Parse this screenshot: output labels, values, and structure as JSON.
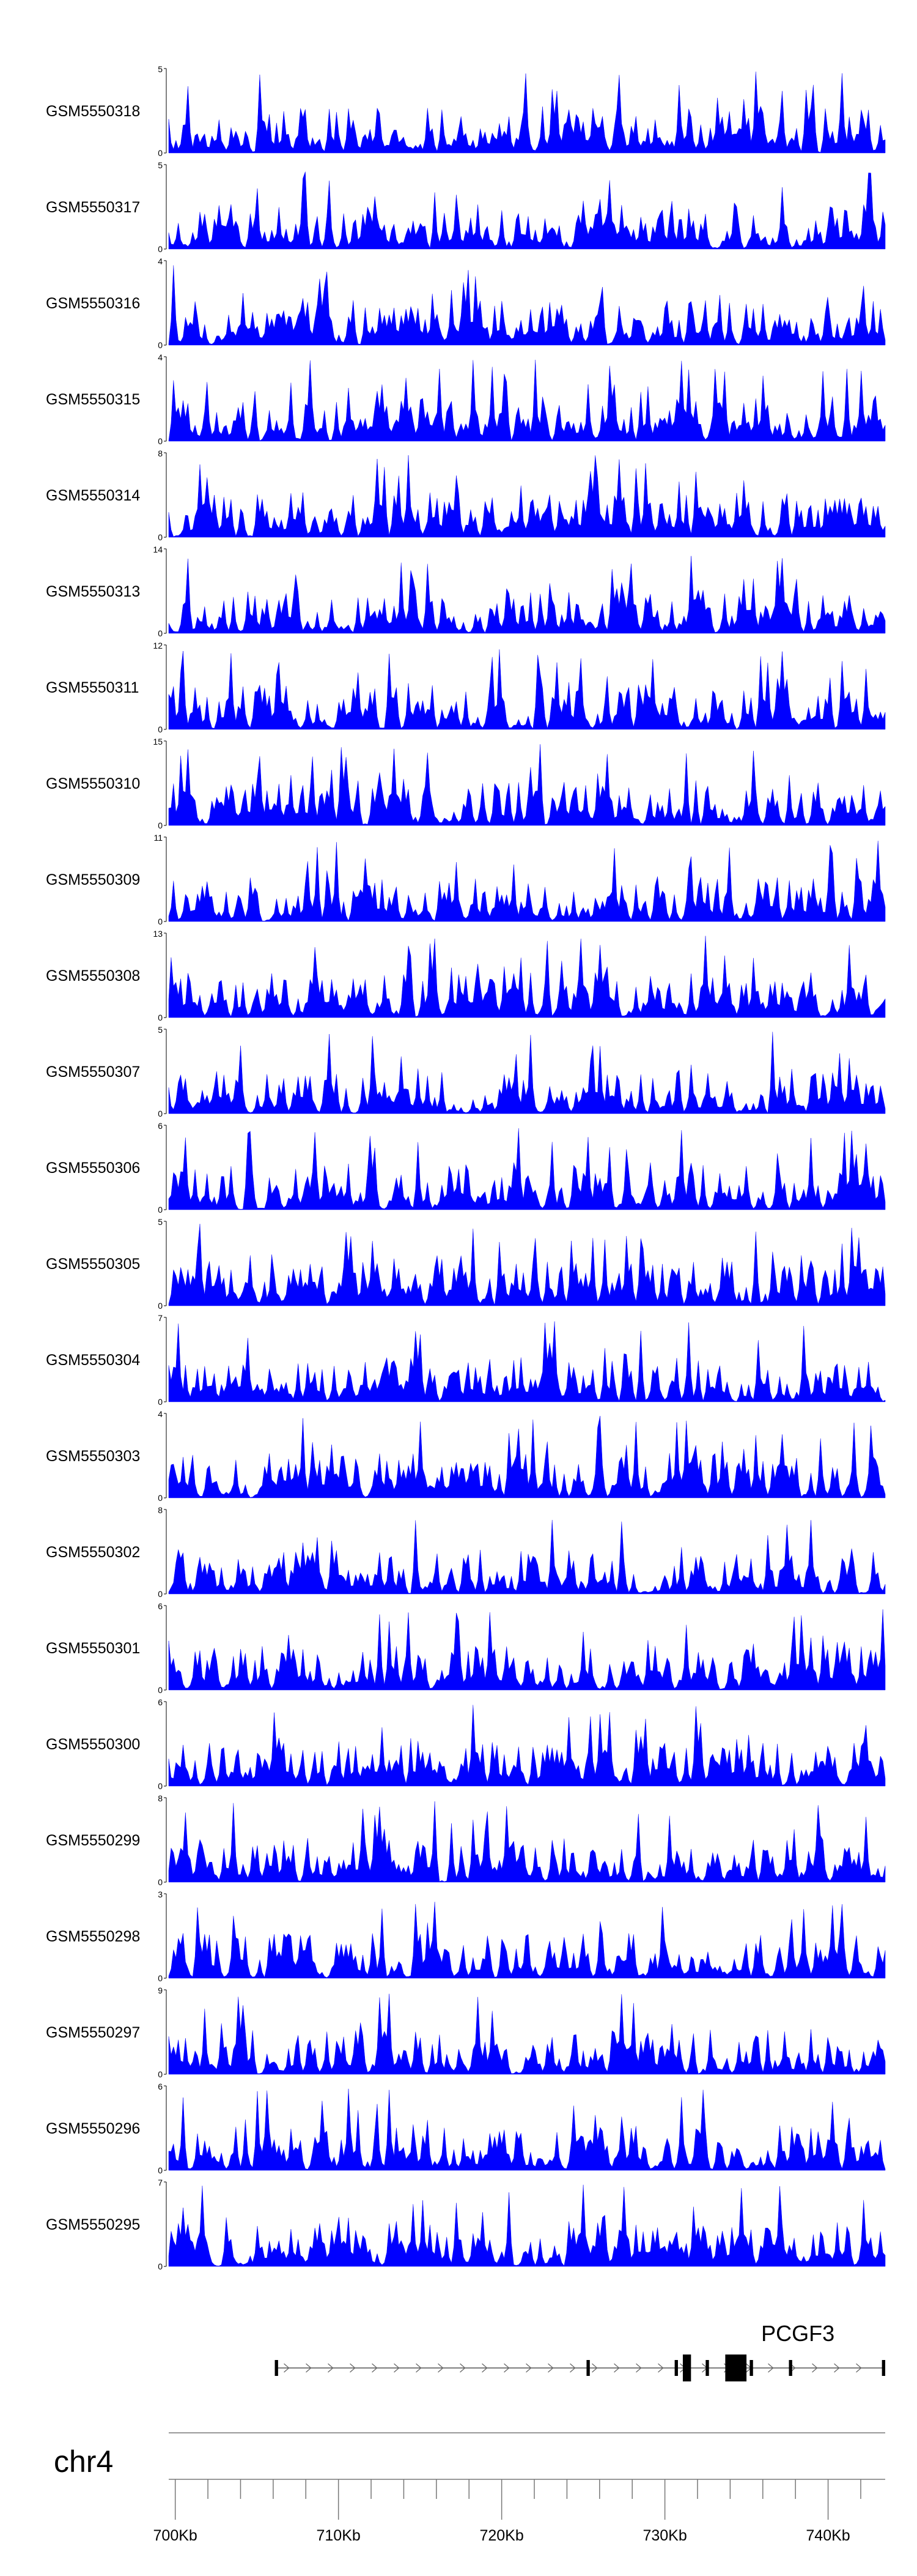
{
  "chart_data": {
    "type": "area",
    "region": {
      "chrom": "chr4",
      "start_kb": 699.6,
      "end_kb": 743.5
    },
    "track_color": "#0000ff",
    "tracks": [
      {
        "name": "GSM5550318",
        "max": 5,
        "min": 0,
        "seed": 318
      },
      {
        "name": "GSM5550317",
        "max": 5,
        "min": 0,
        "seed": 317
      },
      {
        "name": "GSM5550316",
        "max": 4,
        "min": 0,
        "seed": 316
      },
      {
        "name": "GSM5550315",
        "max": 4,
        "min": 0,
        "seed": 315
      },
      {
        "name": "GSM5550314",
        "max": 8,
        "min": 0,
        "seed": 314
      },
      {
        "name": "GSM5550313",
        "max": 14,
        "min": 0,
        "seed": 313
      },
      {
        "name": "GSM5550311",
        "max": 12,
        "min": 0,
        "seed": 311
      },
      {
        "name": "GSM5550310",
        "max": 15,
        "min": 0,
        "seed": 310
      },
      {
        "name": "GSM5550309",
        "max": 11,
        "min": 0,
        "seed": 309
      },
      {
        "name": "GSM5550308",
        "max": 13,
        "min": 0,
        "seed": 308
      },
      {
        "name": "GSM5550307",
        "max": 5,
        "min": 0,
        "seed": 307
      },
      {
        "name": "GSM5550306",
        "max": 6,
        "min": 0,
        "seed": 306
      },
      {
        "name": "GSM5550305",
        "max": 5,
        "min": 0,
        "seed": 305
      },
      {
        "name": "GSM5550304",
        "max": 7,
        "min": 0,
        "seed": 304
      },
      {
        "name": "GSM5550303",
        "max": 4,
        "min": 0,
        "seed": 303
      },
      {
        "name": "GSM5550302",
        "max": 8,
        "min": 0,
        "seed": 302
      },
      {
        "name": "GSM5550301",
        "max": 6,
        "min": 0,
        "seed": 301
      },
      {
        "name": "GSM5550300",
        "max": 6,
        "min": 0,
        "seed": 300
      },
      {
        "name": "GSM5550299",
        "max": 8,
        "min": 0,
        "seed": 299
      },
      {
        "name": "GSM5550298",
        "max": 3,
        "min": 0,
        "seed": 298
      },
      {
        "name": "GSM5550297",
        "max": 9,
        "min": 0,
        "seed": 297
      },
      {
        "name": "GSM5550296",
        "max": 6,
        "min": 0,
        "seed": 296
      },
      {
        "name": "GSM5550295",
        "max": 7,
        "min": 0,
        "seed": 295
      }
    ],
    "gene": {
      "name": "PCGF3",
      "strand": "+",
      "start_kb": 706.1,
      "end_kb": 743.5,
      "exons": [
        {
          "start_kb": 706.1,
          "end_kb": 706.3,
          "thick": false
        },
        {
          "start_kb": 725.2,
          "end_kb": 725.4,
          "thick": false
        },
        {
          "start_kb": 730.6,
          "end_kb": 730.8,
          "thick": false
        },
        {
          "start_kb": 731.1,
          "end_kb": 731.6,
          "thick": true
        },
        {
          "start_kb": 732.5,
          "end_kb": 732.7,
          "thick": false
        },
        {
          "start_kb": 733.7,
          "end_kb": 735.0,
          "thick": true
        },
        {
          "start_kb": 735.2,
          "end_kb": 735.4,
          "thick": false
        },
        {
          "start_kb": 737.6,
          "end_kb": 737.8,
          "thick": false
        },
        {
          "start_kb": 743.3,
          "end_kb": 743.5,
          "thick": false
        }
      ]
    },
    "chromosome": "chr4",
    "axis": {
      "ticks_kb": [
        700,
        710,
        720,
        730,
        740
      ],
      "tick_labels": [
        "700Kb",
        "710Kb",
        "720Kb",
        "730Kb",
        "740Kb"
      ],
      "minor_tick_step_kb": 2
    }
  }
}
